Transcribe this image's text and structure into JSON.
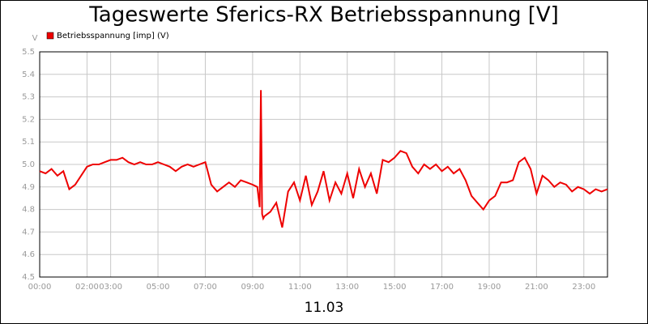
{
  "chart_data": {
    "type": "line",
    "title": "Tageswerte Sferics-RX Betriebsspannung [V]",
    "y_label": "V",
    "x_label": "11.03",
    "grid": true,
    "legend": "top-left",
    "xlim": [
      0,
      24
    ],
    "xticks": [
      {
        "value": 0,
        "label": "00:00"
      },
      {
        "value": 2,
        "label": "02:00"
      },
      {
        "value": 3,
        "label": "03:00"
      },
      {
        "value": 5,
        "label": "05:00"
      },
      {
        "value": 7,
        "label": "07:00"
      },
      {
        "value": 9,
        "label": "09:00"
      },
      {
        "value": 11,
        "label": "11:00"
      },
      {
        "value": 13,
        "label": "13:00"
      },
      {
        "value": 15,
        "label": "15:00"
      },
      {
        "value": 17,
        "label": "17:00"
      },
      {
        "value": 19,
        "label": "19:00"
      },
      {
        "value": 21,
        "label": "21:00"
      },
      {
        "value": 23,
        "label": "23:00"
      }
    ],
    "ylim": [
      4.5,
      5.5
    ],
    "yticks": [
      4.5,
      4.6,
      4.7,
      4.8,
      4.9,
      {
        "value": 5,
        "label": "5.0"
      },
      5.1,
      5.2,
      5.3,
      5.4,
      5.5
    ],
    "x": [
      0,
      0.25,
      0.5,
      0.75,
      1,
      1.25,
      1.5,
      1.75,
      2,
      2.25,
      2.5,
      2.75,
      3,
      3.25,
      3.5,
      3.75,
      4,
      4.25,
      4.5,
      4.75,
      5,
      5.25,
      5.5,
      5.75,
      6,
      6.25,
      6.5,
      6.75,
      7,
      7.25,
      7.5,
      7.75,
      8,
      8.25,
      8.5,
      8.75,
      9,
      9.2,
      9.3,
      9.35,
      9.4,
      9.45,
      9.5,
      9.75,
      10,
      10.25,
      10.5,
      10.75,
      11,
      11.25,
      11.5,
      11.75,
      12,
      12.25,
      12.5,
      12.75,
      13,
      13.25,
      13.5,
      13.75,
      14,
      14.25,
      14.5,
      14.75,
      15,
      15.25,
      15.5,
      15.75,
      16,
      16.25,
      16.5,
      16.75,
      17,
      17.25,
      17.5,
      17.75,
      18,
      18.25,
      18.5,
      18.75,
      19,
      19.25,
      19.5,
      19.75,
      20,
      20.25,
      20.5,
      20.75,
      21,
      21.25,
      21.5,
      21.75,
      22,
      22.25,
      22.5,
      22.75,
      23,
      23.25,
      23.5,
      23.75,
      24
    ],
    "series": [
      {
        "name": "Betriebsspannung [imp] (V)",
        "color": "#ee0000",
        "values": [
          4.97,
          4.96,
          4.98,
          4.95,
          4.97,
          4.89,
          4.91,
          4.95,
          4.99,
          5.0,
          5.0,
          5.01,
          5.02,
          5.02,
          5.03,
          5.01,
          5.0,
          5.01,
          5.0,
          5.0,
          5.01,
          5.0,
          4.99,
          4.97,
          4.99,
          5.0,
          4.99,
          5.0,
          5.01,
          4.91,
          4.88,
          4.9,
          4.92,
          4.9,
          4.93,
          4.92,
          4.91,
          4.9,
          4.81,
          5.33,
          4.78,
          4.76,
          4.77,
          4.79,
          4.83,
          4.72,
          4.88,
          4.92,
          4.84,
          4.95,
          4.82,
          4.88,
          4.97,
          4.84,
          4.92,
          4.87,
          4.96,
          4.85,
          4.98,
          4.9,
          4.96,
          4.87,
          5.02,
          5.01,
          5.03,
          5.06,
          5.05,
          4.99,
          4.96,
          5.0,
          4.98,
          5.0,
          4.97,
          4.99,
          4.96,
          4.98,
          4.93,
          4.86,
          4.83,
          4.8,
          4.84,
          4.86,
          4.92,
          4.92,
          4.93,
          5.01,
          5.03,
          4.98,
          4.87,
          4.95,
          4.93,
          4.9,
          4.92,
          4.91,
          4.88,
          4.9,
          4.89,
          4.87,
          4.89,
          4.88,
          4.89
        ]
      }
    ]
  }
}
